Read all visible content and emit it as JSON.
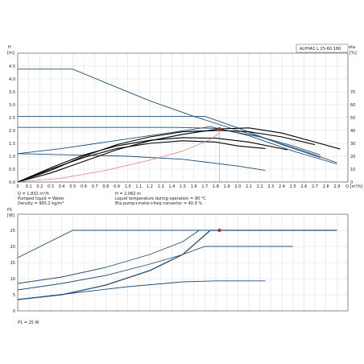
{
  "chart_data": [
    {
      "type": "line",
      "title": "ALPHA1 L 25-60 180",
      "ylabel_line1": "H",
      "ylabel_line2": "[m]",
      "y2label_line1": "eta",
      "y2label_line2": "[%]",
      "xlabel": "Q [m³/h]",
      "xlim": [
        0,
        3.0
      ],
      "ylim": [
        0,
        5.0
      ],
      "y2lim": [
        0,
        100
      ],
      "x_ticks": [
        "0",
        "0.1",
        "0.2",
        "0.3",
        "0.4",
        "0.5",
        "0.6",
        "0.7",
        "0.8",
        "0.9",
        "1.0",
        "1.1",
        "1.2",
        "1.3",
        "1.4",
        "1.5",
        "1.6",
        "1.7",
        "1.8",
        "1.9",
        "2.0",
        "2.1",
        "2.2",
        "2.3",
        "2.4",
        "2.5",
        "2.6",
        "2.7",
        "2.8",
        "2.9",
        "Q [m³/h]"
      ],
      "y_ticks": [
        "0.0",
        "0.5",
        "1.0",
        "1.5",
        "2.0",
        "2.5",
        "3.0",
        "3.5",
        "4.0",
        "4.5"
      ],
      "y2_ticks": [
        "0",
        "10",
        "20",
        "30",
        "40",
        "50",
        "60",
        "70"
      ],
      "grid": true,
      "series": [
        {
          "role": "max-constant-curve",
          "color": "#1f4e79",
          "points": [
            [
              0,
              4.38
            ],
            [
              0.5,
              4.38
            ],
            [
              0.8,
              3.85
            ],
            [
              1.2,
              3.15
            ],
            [
              1.6,
              2.55
            ],
            [
              2.0,
              2.0
            ],
            [
              2.5,
              1.4
            ],
            [
              2.75,
              1.05
            ]
          ]
        },
        {
          "role": "constant-pressure-high",
          "color": "#1f4e79",
          "points": [
            [
              0,
              2.55
            ],
            [
              1.7,
              2.55
            ],
            [
              2.0,
              2.1
            ],
            [
              2.4,
              1.45
            ],
            [
              2.75,
              0.95
            ]
          ]
        },
        {
          "role": "constant-pressure-mid",
          "color": "#1f4e79",
          "points": [
            [
              0,
              2.12
            ],
            [
              1.45,
              2.12
            ],
            [
              1.8,
              2.08
            ],
            [
              2.2,
              1.75
            ],
            [
              2.6,
              1.2
            ],
            [
              2.9,
              0.75
            ]
          ]
        },
        {
          "role": "proportional-pressure",
          "color": "#1f4e79",
          "points": [
            [
              0,
              1.1
            ],
            [
              0.4,
              1.3
            ],
            [
              0.8,
              1.55
            ],
            [
              1.2,
              1.8
            ],
            [
              1.6,
              2.05
            ],
            [
              1.75,
              2.15
            ],
            [
              2.1,
              1.8
            ],
            [
              2.5,
              1.2
            ],
            [
              2.9,
              0.7
            ]
          ]
        },
        {
          "role": "constant-curve-low",
          "color": "#1f4e79",
          "points": [
            [
              0,
              1.1
            ],
            [
              0.5,
              1.05
            ],
            [
              1.0,
              1.0
            ],
            [
              1.5,
              0.88
            ],
            [
              2.0,
              0.62
            ],
            [
              2.25,
              0.45
            ]
          ]
        },
        {
          "role": "system-curve",
          "color": "#000000",
          "points": [
            [
              0,
              0
            ],
            [
              0.3,
              0.35
            ],
            [
              0.6,
              0.8
            ],
            [
              0.9,
              1.25
            ],
            [
              1.2,
              1.6
            ],
            [
              1.5,
              1.85
            ],
            [
              1.832,
              2.062
            ],
            [
              2.1,
              2.1
            ],
            [
              2.4,
              1.9
            ],
            [
              2.7,
              1.55
            ],
            [
              2.93,
              1.28
            ]
          ]
        },
        {
          "role": "system-curve-2",
          "color": "#000000",
          "points": [
            [
              0,
              0
            ],
            [
              0.3,
              0.45
            ],
            [
              0.6,
              1.0
            ],
            [
              0.9,
              1.45
            ],
            [
              1.2,
              1.75
            ],
            [
              1.5,
              1.95
            ],
            [
              1.832,
              2.0
            ],
            [
              2.1,
              1.95
            ],
            [
              2.4,
              1.75
            ],
            [
              2.7,
              1.45
            ]
          ]
        },
        {
          "role": "system-curve-3",
          "color": "#000000",
          "points": [
            [
              0,
              0
            ],
            [
              0.3,
              0.55
            ],
            [
              0.6,
              1.05
            ],
            [
              0.9,
              1.4
            ],
            [
              1.2,
              1.62
            ],
            [
              1.5,
              1.72
            ],
            [
              1.8,
              1.7
            ],
            [
              2.1,
              1.55
            ],
            [
              2.45,
              1.25
            ]
          ]
        },
        {
          "role": "system-curve-4",
          "color": "#000000",
          "points": [
            [
              0,
              0
            ],
            [
              0.3,
              0.5
            ],
            [
              0.6,
              0.95
            ],
            [
              0.9,
              1.3
            ],
            [
              1.2,
              1.5
            ],
            [
              1.5,
              1.6
            ],
            [
              1.8,
              1.55
            ],
            [
              2.0,
              1.4
            ],
            [
              2.25,
              1.3
            ]
          ]
        },
        {
          "role": "efficiency",
          "color": "#d46a5a",
          "points": [
            [
              0,
              0
            ],
            [
              0.4,
              0.15
            ],
            [
              0.8,
              0.45
            ],
            [
              1.2,
              0.85
            ],
            [
              1.5,
              1.2
            ],
            [
              1.75,
              1.65
            ],
            [
              1.832,
              1.9
            ]
          ]
        }
      ],
      "duty_point": {
        "q": 1.832,
        "h": 2.062,
        "color": "#e02020"
      }
    },
    {
      "type": "line",
      "ylabel_line1": "P1",
      "ylabel_line2": "[W]",
      "xlim": [
        0,
        3.0
      ],
      "ylim": [
        0,
        30
      ],
      "y_ticks": [
        "0",
        "5",
        "10",
        "15",
        "20",
        "25"
      ],
      "grid": true,
      "series": [
        {
          "role": "power-max",
          "color": "#1f4e79",
          "points": [
            [
              0,
              16.5
            ],
            [
              0.5,
              25
            ],
            [
              2.9,
              25
            ]
          ]
        },
        {
          "role": "power-constant-pressure",
          "color": "#1f4e79",
          "points": [
            [
              0,
              8.5
            ],
            [
              0.4,
              10.5
            ],
            [
              0.8,
              13.5
            ],
            [
              1.2,
              17.5
            ],
            [
              1.5,
              21.5
            ],
            [
              1.65,
              25
            ],
            [
              1.85,
              25
            ]
          ]
        },
        {
          "role": "power-proportional",
          "color": "#1f4e79",
          "points": [
            [
              0,
              3.5
            ],
            [
              0.4,
              5.0
            ],
            [
              0.8,
              8.0
            ],
            [
              1.2,
              12.5
            ],
            [
              1.5,
              17.5
            ],
            [
              1.75,
              25
            ],
            [
              2.9,
              25
            ]
          ]
        },
        {
          "role": "power-mid",
          "color": "#1f4e79",
          "points": [
            [
              0,
              6.5
            ],
            [
              0.4,
              8.5
            ],
            [
              0.8,
              11.0
            ],
            [
              1.2,
              14.5
            ],
            [
              1.5,
              17.5
            ],
            [
              1.7,
              20
            ],
            [
              2.5,
              20
            ]
          ]
        },
        {
          "role": "power-low",
          "color": "#1f4e79",
          "points": [
            [
              0,
              3.5
            ],
            [
              0.5,
              5.5
            ],
            [
              1.0,
              7.5
            ],
            [
              1.5,
              9.0
            ],
            [
              1.8,
              9.3
            ],
            [
              2.25,
              9.3
            ]
          ]
        }
      ],
      "duty_point": {
        "q": 1.832,
        "p": 25,
        "color": "#e02020"
      }
    }
  ],
  "info": {
    "q": "Q = 1.832 m³/h",
    "h": "H = 2.062 m",
    "liquid": "Pumped liquid = Water",
    "temp": "Liquid temperature during operation = 90 °C",
    "density": "Density = 965.2 kg/m³",
    "eta": "Eta pump+motor+freq converter = 40.9 %",
    "p1": "P1 = 25 W"
  }
}
